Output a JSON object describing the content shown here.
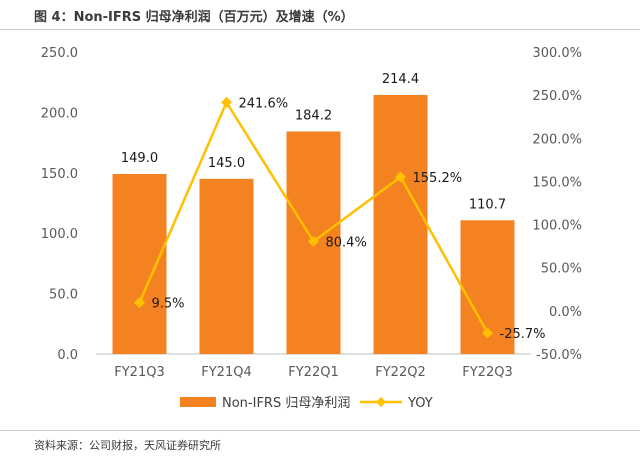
{
  "title": "图 4：Non-IFRS 归母净利润（百万元）及增速（%）",
  "source": "资料来源：公司财报，天风证券研究所",
  "colors": {
    "bar": "#F58220",
    "line": "#FFC000"
  },
  "chart_data": {
    "type": "bar",
    "categories": [
      "FY21Q3",
      "FY21Q4",
      "FY22Q1",
      "FY22Q2",
      "FY22Q3"
    ],
    "series": [
      {
        "name": "Non-IFRS 归母净利润",
        "type": "bar",
        "axis": "left",
        "values": [
          149.0,
          145.0,
          184.2,
          214.4,
          110.7
        ],
        "labels": [
          "149.0",
          "145.0",
          "184.2",
          "214.4",
          "110.7"
        ]
      },
      {
        "name": "YOY",
        "type": "line",
        "axis": "right",
        "values": [
          9.5,
          241.6,
          80.4,
          155.2,
          -25.7
        ],
        "labels": [
          "9.5%",
          "241.6%",
          "80.4%",
          "155.2%",
          "-25.7%"
        ]
      }
    ],
    "y_left": {
      "min": 0,
      "max": 250,
      "step": 50,
      "tick_labels": [
        "0.0",
        "50.0",
        "100.0",
        "150.0",
        "200.0",
        "250.0"
      ]
    },
    "y_right": {
      "min": -50,
      "max": 300,
      "step": 50,
      "tick_labels": [
        "-50.0%",
        "0.0%",
        "50.0%",
        "100.0%",
        "150.0%",
        "200.0%",
        "250.0%",
        "300.0%"
      ]
    },
    "legend_position": "bottom",
    "grid": false
  }
}
